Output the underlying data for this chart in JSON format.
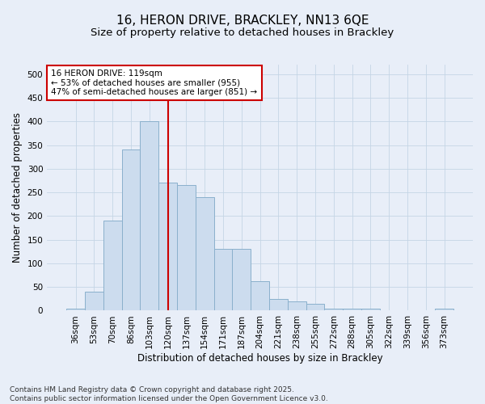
{
  "title_line1": "16, HERON DRIVE, BRACKLEY, NN13 6QE",
  "title_line2": "Size of property relative to detached houses in Brackley",
  "xlabel": "Distribution of detached houses by size in Brackley",
  "ylabel": "Number of detached properties",
  "bar_labels": [
    "36sqm",
    "53sqm",
    "70sqm",
    "86sqm",
    "103sqm",
    "120sqm",
    "137sqm",
    "154sqm",
    "171sqm",
    "187sqm",
    "204sqm",
    "221sqm",
    "238sqm",
    "255sqm",
    "272sqm",
    "288sqm",
    "305sqm",
    "322sqm",
    "339sqm",
    "356sqm",
    "373sqm"
  ],
  "bar_values": [
    5,
    40,
    190,
    340,
    400,
    270,
    265,
    240,
    130,
    130,
    63,
    25,
    20,
    15,
    5,
    5,
    5,
    0,
    0,
    0,
    4
  ],
  "bar_color": "#ccdcee",
  "bar_edgecolor": "#8ab0cc",
  "grid_color": "#c5d5e5",
  "background_color": "#e8eef8",
  "vline_x_index": 5,
  "vline_color": "#cc0000",
  "annotation_text": "16 HERON DRIVE: 119sqm\n← 53% of detached houses are smaller (955)\n47% of semi-detached houses are larger (851) →",
  "annotation_box_facecolor": "#ffffff",
  "annotation_box_edgecolor": "#cc0000",
  "ylim": [
    0,
    520
  ],
  "yticks": [
    0,
    50,
    100,
    150,
    200,
    250,
    300,
    350,
    400,
    450,
    500
  ],
  "footnote": "Contains HM Land Registry data © Crown copyright and database right 2025.\nContains public sector information licensed under the Open Government Licence v3.0.",
  "title_fontsize": 11,
  "subtitle_fontsize": 9.5,
  "axis_label_fontsize": 8.5,
  "tick_fontsize": 7.5,
  "annotation_fontsize": 7.5,
  "footnote_fontsize": 6.5
}
